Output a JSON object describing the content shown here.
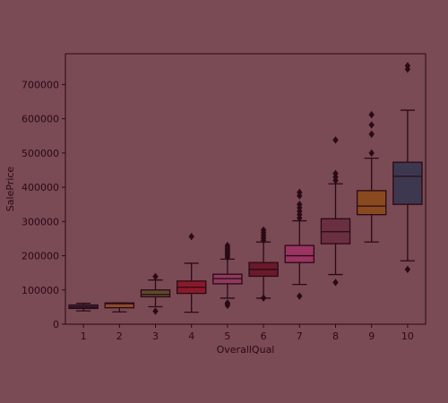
{
  "chart_data": {
    "type": "box",
    "xlabel": "OverallQual",
    "ylabel": "SalePrice",
    "categories": [
      "1",
      "2",
      "3",
      "4",
      "5",
      "6",
      "7",
      "8",
      "9",
      "10"
    ],
    "ylim": [
      0,
      790000
    ],
    "yticks": [
      0,
      100000,
      200000,
      300000,
      400000,
      500000,
      600000,
      700000
    ],
    "ytick_labels": [
      "0",
      "100000",
      "200000",
      "300000",
      "400000",
      "500000",
      "600000",
      "700000"
    ],
    "grid": false,
    "boxes": [
      {
        "category": "1",
        "whislo": 39000,
        "q1": 46000,
        "med": 50000,
        "q3": 56000,
        "whishi": 61000,
        "fliers": [],
        "color": "#3d2a47"
      },
      {
        "category": "2",
        "whislo": 36000,
        "q1": 48000,
        "med": 60000,
        "q3": 62000,
        "whishi": 62000,
        "fliers": [],
        "color": "#8a4a2c"
      },
      {
        "category": "3",
        "whislo": 51000,
        "q1": 80000,
        "med": 87000,
        "q3": 100000,
        "whishi": 129000,
        "fliers": [
          37900,
          139000
        ],
        "color": "#5f4a2e"
      },
      {
        "category": "4",
        "whislo": 35000,
        "q1": 90000,
        "med": 108000,
        "q3": 126000,
        "whishi": 178000,
        "fliers": [
          256000
        ],
        "color": "#8a1a2a"
      },
      {
        "category": "5",
        "whislo": 76000,
        "q1": 118000,
        "med": 133000,
        "q3": 146000,
        "whishi": 190000,
        "fliers": [
          55000,
          60000,
          62000,
          195000,
          200000,
          205000,
          210000,
          215000,
          220000,
          225000,
          230000
        ],
        "color": "#8e3a5f"
      },
      {
        "category": "6",
        "whislo": 76000,
        "q1": 140000,
        "med": 160000,
        "q3": 180000,
        "whishi": 240000,
        "fliers": [
          76500,
          245000,
          252000,
          260000,
          268000,
          275000
        ],
        "color": "#6a1a2a"
      },
      {
        "category": "7",
        "whislo": 116000,
        "q1": 180000,
        "med": 200000,
        "q3": 230000,
        "whishi": 302000,
        "fliers": [
          82000,
          310000,
          320000,
          330000,
          340000,
          350000,
          375000,
          385000
        ],
        "color": "#9a3460"
      },
      {
        "category": "8",
        "whislo": 145000,
        "q1": 235000,
        "med": 270000,
        "q3": 308000,
        "whishi": 410000,
        "fliers": [
          122000,
          420000,
          430000,
          440000,
          538000
        ],
        "color": "#6a3040"
      },
      {
        "category": "9",
        "whislo": 240000,
        "q1": 320000,
        "med": 345000,
        "q3": 390000,
        "whishi": 485000,
        "fliers": [
          500000,
          555000,
          582000,
          612000
        ],
        "color": "#8a4a20"
      },
      {
        "category": "10",
        "whislo": 185000,
        "q1": 350000,
        "med": 432000,
        "q3": 473000,
        "whishi": 625000,
        "fliers": [
          160000,
          745000,
          755000
        ],
        "color": "#3d3850"
      }
    ]
  }
}
